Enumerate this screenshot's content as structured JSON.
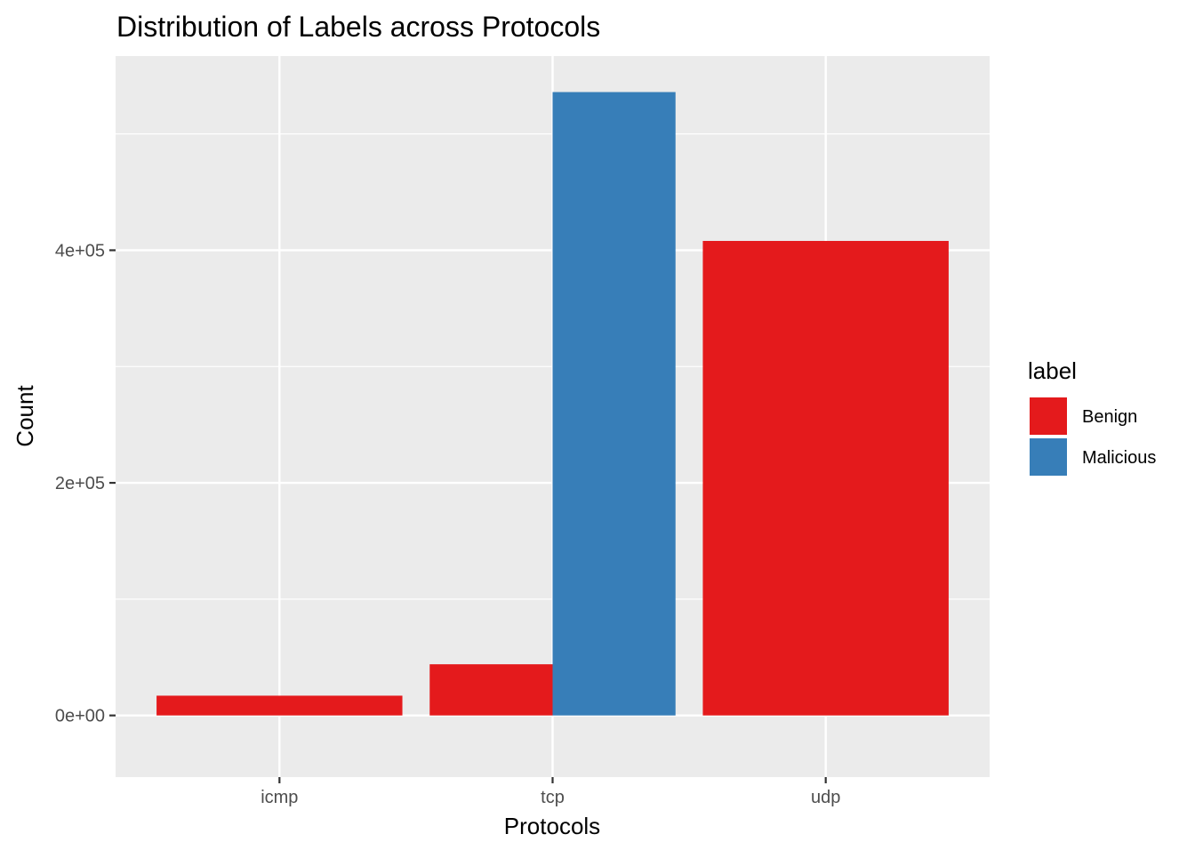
{
  "chart_data": {
    "type": "bar",
    "title": "Distribution of Labels across Protocols",
    "xlabel": "Protocols",
    "ylabel": "Count",
    "categories": [
      "icmp",
      "tcp",
      "udp"
    ],
    "series": [
      {
        "name": "Benign",
        "color": "#E41A1C",
        "values": [
          17000,
          44000,
          408000
        ]
      },
      {
        "name": "Malicious",
        "color": "#377EB8",
        "values": [
          null,
          536000,
          null
        ]
      }
    ],
    "bar_layout": {
      "icmp": [
        "Benign"
      ],
      "tcp": [
        "Benign",
        "Malicious"
      ],
      "udp": [
        "Benign"
      ]
    },
    "ylim": [
      -53000,
      567000
    ],
    "yticks": [
      0,
      200000,
      400000
    ],
    "ytick_labels": [
      "0e+00",
      "2e+05",
      "4e+05"
    ],
    "yminor": [
      100000,
      300000,
      500000
    ],
    "grid": true,
    "legend": {
      "title": "label",
      "position": "right",
      "entries": [
        "Benign",
        "Malicious"
      ]
    },
    "panel_background": "#EBEBEB",
    "gridline_color": "#FFFFFF"
  }
}
